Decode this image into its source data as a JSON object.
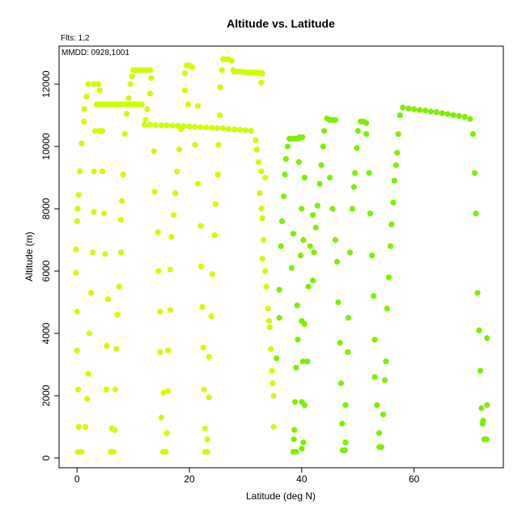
{
  "chart_data": {
    "type": "scatter",
    "title": "Altitude vs. Latitude",
    "subtitle": "Flts: 1,2",
    "annotation": "MMDD: 0928,1001",
    "x_label": "Latitude (deg N)",
    "y_label": "Altitude (m)",
    "xlim": [
      -3.2,
      75.9
    ],
    "ylim": [
      -312,
      13221
    ],
    "xticks": [
      0,
      20,
      40,
      60
    ],
    "yticks": [
      0,
      2000,
      4000,
      6000,
      8000,
      10000,
      12000
    ],
    "series": [
      {
        "color": "#ccff00",
        "x": [
          0.1,
          0.8,
          0.3,
          0.2,
          0,
          0,
          -0.2,
          -0.2,
          0,
          0.1,
          0.3,
          0.5,
          0.8,
          1.2,
          1.3,
          1.7,
          2,
          3,
          3.8,
          1.5,
          1.8,
          2,
          2.2,
          2.5,
          2.8,
          3,
          3,
          3.2,
          4,
          4,
          3.5,
          4,
          4.5,
          5,
          5.5,
          6,
          6.5,
          7,
          7.5,
          8,
          8.5,
          9,
          9.5,
          10,
          10.5,
          11,
          11.5,
          5.2,
          5.3,
          5.5,
          5,
          4.8,
          4.5,
          4.5,
          6,
          6.5,
          6.2,
          6.7,
          6.8,
          7,
          7.2,
          7.5,
          7.8,
          7.8,
          8,
          8.2,
          8.5,
          8.8,
          9.2,
          9.5,
          9.8,
          10,
          10.5,
          11,
          11.5,
          12,
          12.5,
          13,
          13.2,
          13,
          12.5,
          12.2,
          12,
          13,
          14,
          15,
          16,
          17,
          18,
          19,
          20,
          21,
          22,
          23,
          24,
          25,
          26,
          27,
          28,
          29,
          30,
          31,
          15.8,
          15.3,
          15,
          15.4,
          16.2,
          14.8,
          16.2,
          14.8,
          16.6,
          14.5,
          16.6,
          14.4,
          16.8,
          13.8,
          17.2,
          17.5,
          17.8,
          13.7,
          18.2,
          18.5,
          16,
          19.8,
          19.2,
          19.2,
          19.5,
          20,
          20.5,
          21.5,
          21,
          21.5,
          22,
          22.1,
          22.3,
          22.5,
          22.6,
          22.8,
          22.8,
          23.2,
          23.2,
          23.5,
          23.5,
          23.9,
          24.1,
          24.5,
          24.7,
          25.1,
          25.2,
          25.4,
          25.5,
          25.8,
          26,
          26.5,
          27,
          27.5,
          27.8,
          28,
          28.5,
          29,
          29.5,
          30,
          30.5,
          31,
          31.5,
          32,
          32.5,
          33,
          32.8,
          31.8,
          32,
          32.3,
          32.8,
          32.5,
          33,
          33.2,
          33.5,
          33.7,
          34,
          34.3,
          34.5,
          34.7,
          35,
          35,
          33.5,
          32.8,
          33,
          34.2,
          34.8
        ],
        "values": [
          200,
          200,
          1000,
          2200,
          3450,
          4700,
          5950,
          6700,
          7600,
          8000,
          8450,
          9200,
          10100,
          10800,
          11200,
          11600,
          12000,
          12000,
          12000,
          1000,
          1900,
          2700,
          4000,
          5300,
          6600,
          7900,
          9200,
          10500,
          10500,
          11800,
          11350,
          11350,
          11350,
          11350,
          11350,
          11350,
          11350,
          11350,
          11350,
          11350,
          11350,
          11350,
          11350,
          11350,
          11350,
          11350,
          11350,
          2200,
          3600,
          5100,
          6550,
          7850,
          9200,
          10500,
          200,
          200,
          950,
          900,
          2200,
          3500,
          4600,
          5500,
          6600,
          7650,
          8250,
          9100,
          10400,
          11050,
          11550,
          12000,
          12250,
          12450,
          12450,
          12450,
          12450,
          12450,
          12450,
          12450,
          12200,
          11700,
          11200,
          10850,
          10700,
          10700,
          10690,
          10680,
          10680,
          10670,
          10660,
          10650,
          10640,
          10630,
          10620,
          10610,
          10600,
          10590,
          10580,
          10560,
          10550,
          10540,
          10520,
          10500,
          200,
          200,
          1300,
          2100,
          2150,
          3400,
          3450,
          4700,
          4750,
          6000,
          6050,
          7250,
          7100,
          8550,
          7800,
          8500,
          9200,
          9850,
          9900,
          10550,
          800,
          11350,
          11800,
          12350,
          12600,
          12600,
          12550,
          11300,
          10050,
          8800,
          7450,
          6150,
          4850,
          3550,
          2200,
          950,
          200,
          200,
          600,
          1950,
          3250,
          4550,
          5900,
          7150,
          8150,
          9100,
          10050,
          11000,
          11900,
          12450,
          12800,
          12800,
          12800,
          12750,
          12450,
          12400,
          12400,
          12400,
          12400,
          12380,
          12380,
          12380,
          12370,
          12370,
          12360,
          12350,
          12050,
          10200,
          9900,
          9500,
          9200,
          8500,
          7700,
          7000,
          6000,
          5500,
          4800,
          4200,
          3500,
          2800,
          2000,
          1000,
          9000,
          8000,
          6400,
          4400,
          2400
        ]
      },
      {
        "color": "#80ee00",
        "x": [
          36,
          36.3,
          36.5,
          36.8,
          37,
          37.2,
          37.5,
          37.8,
          38,
          38.5,
          39,
          39.5,
          35.5,
          36,
          38.5,
          38.2,
          39.2,
          39.3,
          39,
          38.8,
          38.7,
          38.5,
          39,
          38.6,
          40,
          40.3,
          40,
          40.5,
          40.2,
          41,
          40,
          40.5,
          41.2,
          41.5,
          42,
          40.5,
          40,
          40.3,
          39.8,
          39.5,
          39.6,
          40.1,
          44.5,
          45,
          45.5,
          46,
          44,
          43.8,
          43.5,
          43.2,
          42.8,
          42.5,
          42.2,
          42,
          45,
          45.5,
          46,
          46.3,
          46.5,
          46.8,
          47,
          47.2,
          47.3,
          47.7,
          47.8,
          47.8,
          48.2,
          48.3,
          48.6,
          49,
          49.5,
          49.8,
          50,
          50.5,
          51,
          51.5,
          49.3,
          51.5,
          52,
          52.2,
          52.5,
          52.8,
          53,
          53,
          53.4,
          53.8,
          53.8,
          54.2,
          54.5,
          54.8,
          55,
          55.2,
          55.5,
          55.8,
          56,
          56.3,
          56.5,
          56.8,
          57,
          57.2,
          57.5,
          58,
          59,
          60,
          61,
          62,
          63,
          64,
          65,
          66,
          67,
          68,
          69,
          70,
          70.5,
          70.8,
          71,
          71.3,
          71.6,
          71.8,
          72,
          72.2,
          72.5,
          72.9,
          73,
          73,
          72.3
        ],
        "values": [
          5400,
          6800,
          7600,
          8400,
          9100,
          9600,
          10000,
          10250,
          10250,
          10250,
          10250,
          10250,
          3200,
          4500,
          7200,
          6100,
          4900,
          3800,
          2900,
          1800,
          900,
          200,
          200,
          600,
          300,
          500,
          1800,
          1700,
          3100,
          3100,
          4400,
          4300,
          5500,
          6800,
          7800,
          9000,
          8000,
          7000,
          6500,
          9500,
          10300,
          10300,
          10900,
          10850,
          10850,
          10850,
          10500,
          10000,
          9400,
          8800,
          8100,
          7400,
          6600,
          5700,
          9000,
          8000,
          7000,
          6300,
          5000,
          3700,
          2400,
          1100,
          250,
          250,
          500,
          1700,
          3400,
          4500,
          6600,
          8000,
          9150,
          9950,
          10500,
          10800,
          10800,
          10750,
          8700,
          10400,
          9150,
          7850,
          6500,
          5200,
          3800,
          2600,
          1700,
          800,
          350,
          350,
          1400,
          2500,
          3100,
          4800,
          5800,
          6800,
          7500,
          8200,
          8900,
          9400,
          9800,
          10400,
          11000,
          11250,
          11220,
          11200,
          11170,
          11150,
          11120,
          11100,
          11070,
          11040,
          11010,
          10980,
          10950,
          10880,
          10400,
          9150,
          7850,
          5300,
          4100,
          2800,
          1600,
          1100,
          600,
          600,
          1700,
          3850,
          1200
        ]
      }
    ]
  }
}
